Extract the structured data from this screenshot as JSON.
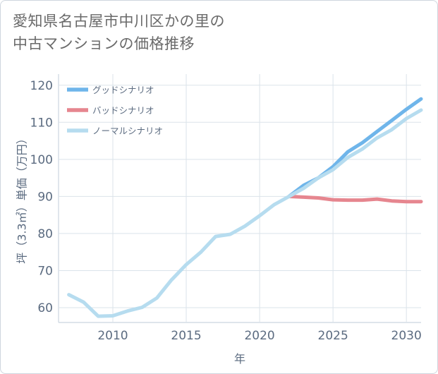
{
  "title_line1": "愛知県名古屋市中川区かの里の",
  "title_line2": "中古マンションの価格推移",
  "chart_data": {
    "type": "line",
    "title": "愛知県名古屋市中川区かの里の中古マンションの価格推移",
    "xlabel": "年",
    "ylabel": "坪（3.3㎡）単価（万円）",
    "xlim": [
      2006.3,
      2031
    ],
    "ylim": [
      56,
      123
    ],
    "xticks": [
      2010,
      2015,
      2020,
      2025,
      2030
    ],
    "yticks": [
      60,
      70,
      80,
      90,
      100,
      110,
      120
    ],
    "grid": true,
    "legend_position": "top-left",
    "series": [
      {
        "name": "グッドシナリオ",
        "color": "#6fb5ea",
        "x": [
          2022,
          2023,
          2024,
          2025,
          2026,
          2027,
          2028,
          2029,
          2030,
          2031
        ],
        "y": [
          90,
          93,
          95,
          98,
          102,
          104.5,
          107.5,
          110.5,
          113.5,
          116.3
        ]
      },
      {
        "name": "バッドシナリオ",
        "color": "#e6868f",
        "x": [
          2022,
          2023,
          2024,
          2025,
          2026,
          2027,
          2028,
          2029,
          2030,
          2031
        ],
        "y": [
          90,
          89.8,
          89.6,
          89.1,
          89.0,
          89.0,
          89.3,
          88.8,
          88.6,
          88.6
        ]
      },
      {
        "name": "ノーマルシナリオ",
        "color": "#b6dcef",
        "x": [
          2007,
          2008,
          2009,
          2010,
          2011,
          2012,
          2013,
          2014,
          2015,
          2016,
          2017,
          2018,
          2019,
          2020,
          2021,
          2022,
          2023,
          2024,
          2025,
          2026,
          2027,
          2028,
          2029,
          2030,
          2031
        ],
        "y": [
          63.5,
          61.5,
          57.7,
          57.8,
          59.1,
          60.1,
          62.6,
          67.5,
          71.6,
          75.0,
          79.2,
          79.8,
          82.0,
          84.8,
          87.8,
          90.0,
          92.2,
          95.0,
          97.2,
          100.5,
          102.8,
          105.8,
          108.0,
          111.0,
          113.3
        ]
      }
    ]
  }
}
